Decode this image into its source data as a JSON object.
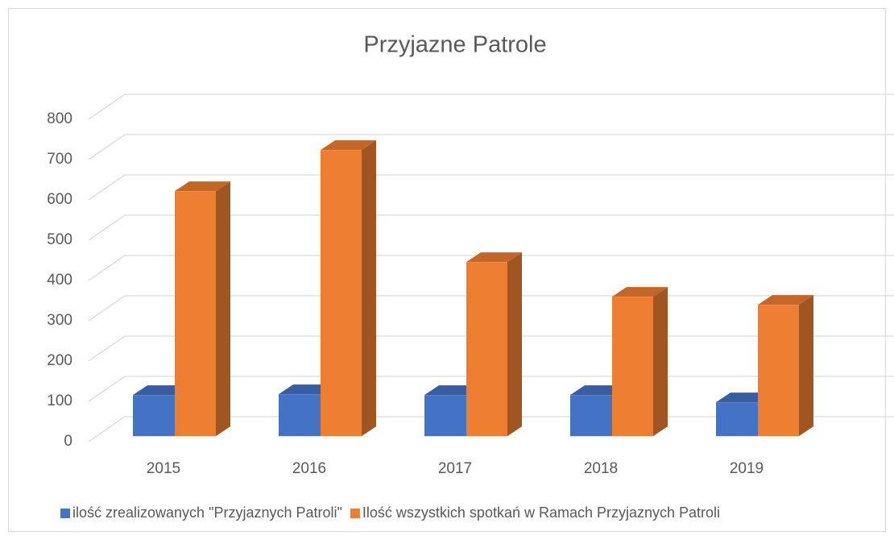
{
  "chart_data": {
    "type": "bar3d",
    "title": "Przyjazne Patrole",
    "categories": [
      "2015",
      "2016",
      "2017",
      "2018",
      "2019"
    ],
    "series": [
      {
        "name": "ilość zrealizowanych \"Przyjaznych Patroli\"",
        "color": "#4472c4",
        "values": [
          102,
          104,
          102,
          102,
          84
        ]
      },
      {
        "name": "Ilość wszystkich spotkań w Ramach Przyjaznych Patroli",
        "color": "#ed7d31",
        "values": [
          608,
          710,
          432,
          346,
          326
        ]
      }
    ],
    "ylim": [
      0,
      800
    ],
    "yticks": [
      0,
      100,
      200,
      300,
      400,
      500,
      600,
      700,
      800
    ],
    "grid": true,
    "legend": "bottom"
  }
}
